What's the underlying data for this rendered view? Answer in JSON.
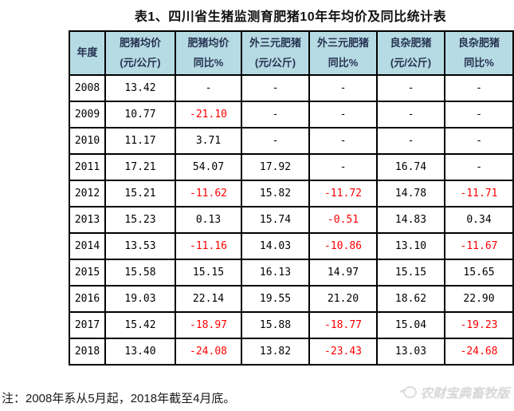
{
  "chart_data": {
    "type": "table",
    "title": "表1、四川省生猪监测育肥猪10年年均价及同比统计表",
    "columns": [
      {
        "line1": "年度",
        "line2": ""
      },
      {
        "line1": "肥猪均价",
        "line2": "(元/公斤)"
      },
      {
        "line1": "肥猪均价",
        "line2": "同比%"
      },
      {
        "line1": "外三元肥猪",
        "line2": "(元/公斤)"
      },
      {
        "line1": "外三元肥猪",
        "line2": "同比%"
      },
      {
        "line1": "良杂肥猪",
        "line2": "(元/公斤)"
      },
      {
        "line1": "良杂肥猪",
        "line2": "同比%"
      }
    ],
    "rows": [
      [
        "2008",
        "13.42",
        "-",
        "-",
        "-",
        "-",
        "-"
      ],
      [
        "2009",
        "10.77",
        "-21.10",
        "-",
        "-",
        "-",
        "-"
      ],
      [
        "2010",
        "11.17",
        "3.71",
        "-",
        "-",
        "-",
        "-"
      ],
      [
        "2011",
        "17.21",
        "54.07",
        "17.92",
        "-",
        "16.74",
        "-"
      ],
      [
        "2012",
        "15.21",
        "-11.62",
        "15.82",
        "-11.72",
        "14.78",
        "-11.71"
      ],
      [
        "2013",
        "15.23",
        "0.13",
        "15.74",
        "-0.51",
        "14.83",
        "0.34"
      ],
      [
        "2014",
        "13.53",
        "-11.16",
        "14.03",
        "-10.86",
        "13.10",
        "-11.67"
      ],
      [
        "2015",
        "15.58",
        "15.15",
        "16.13",
        "14.97",
        "15.15",
        "15.65"
      ],
      [
        "2016",
        "19.03",
        "22.14",
        "19.55",
        "21.20",
        "18.62",
        "22.90"
      ],
      [
        "2017",
        "15.42",
        "-18.97",
        "15.88",
        "-18.77",
        "15.04",
        "-19.23"
      ],
      [
        "2018",
        "13.40",
        "-24.08",
        "13.82",
        "-23.43",
        "13.03",
        "-24.68"
      ]
    ],
    "note": "注：2008年系从5月起，2018年截至4月底。",
    "legend_position": "none",
    "grid": true
  },
  "watermark": {
    "label": "农财宝典畜牧版"
  },
  "colors": {
    "header_bg": "#B6DBE3",
    "header_text": "#263352",
    "border": "#000000",
    "negative_value": "#FF0000",
    "value_text": "#000000",
    "watermark_text": "#D9D9D9",
    "background": "#FFFFFF"
  }
}
